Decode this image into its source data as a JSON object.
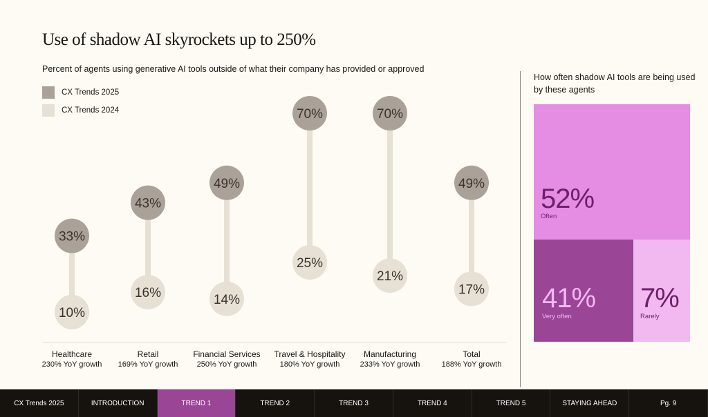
{
  "title": "Use of shadow AI skyrockets up to 250%",
  "subtitle": "Percent of agents using generative AI tools outside of what their company has provided or approved",
  "chart_data": {
    "type": "dumbbell",
    "categories": [
      "Healthcare",
      "Retail",
      "Financial Services",
      "Travel & Hospitality",
      "Manufacturing",
      "Total"
    ],
    "growth_labels": [
      "230% YoY growth",
      "169% YoY growth",
      "250% YoY growth",
      "180% YoY growth",
      "233% YoY growth",
      "188% YoY growth"
    ],
    "series": [
      {
        "name": "CX Trends 2025",
        "values": [
          33,
          43,
          49,
          70,
          70,
          49
        ],
        "color": "#aaa298"
      },
      {
        "name": "CX Trends 2024",
        "values": [
          10,
          16,
          14,
          25,
          21,
          17
        ],
        "color": "#e6e0d5"
      }
    ],
    "legend": "top-left"
  },
  "side": {
    "title": "How often shadow AI tools are being used by these agents",
    "tiles": [
      {
        "value": "52%",
        "label": "Often",
        "color": "#e48de3"
      },
      {
        "value": "41%",
        "label": "Very often",
        "color": "#9a4596"
      },
      {
        "value": "7%",
        "label": "Rarely",
        "color": "#f2b9f1"
      }
    ]
  },
  "nav": [
    "CX Trends 2025",
    "INTRODUCTION",
    "TREND 1",
    "TREND 2",
    "TREND 3",
    "TREND 4",
    "TREND 5",
    "STAYING AHEAD",
    "Pg. 9"
  ],
  "nav_active": "TREND 1"
}
